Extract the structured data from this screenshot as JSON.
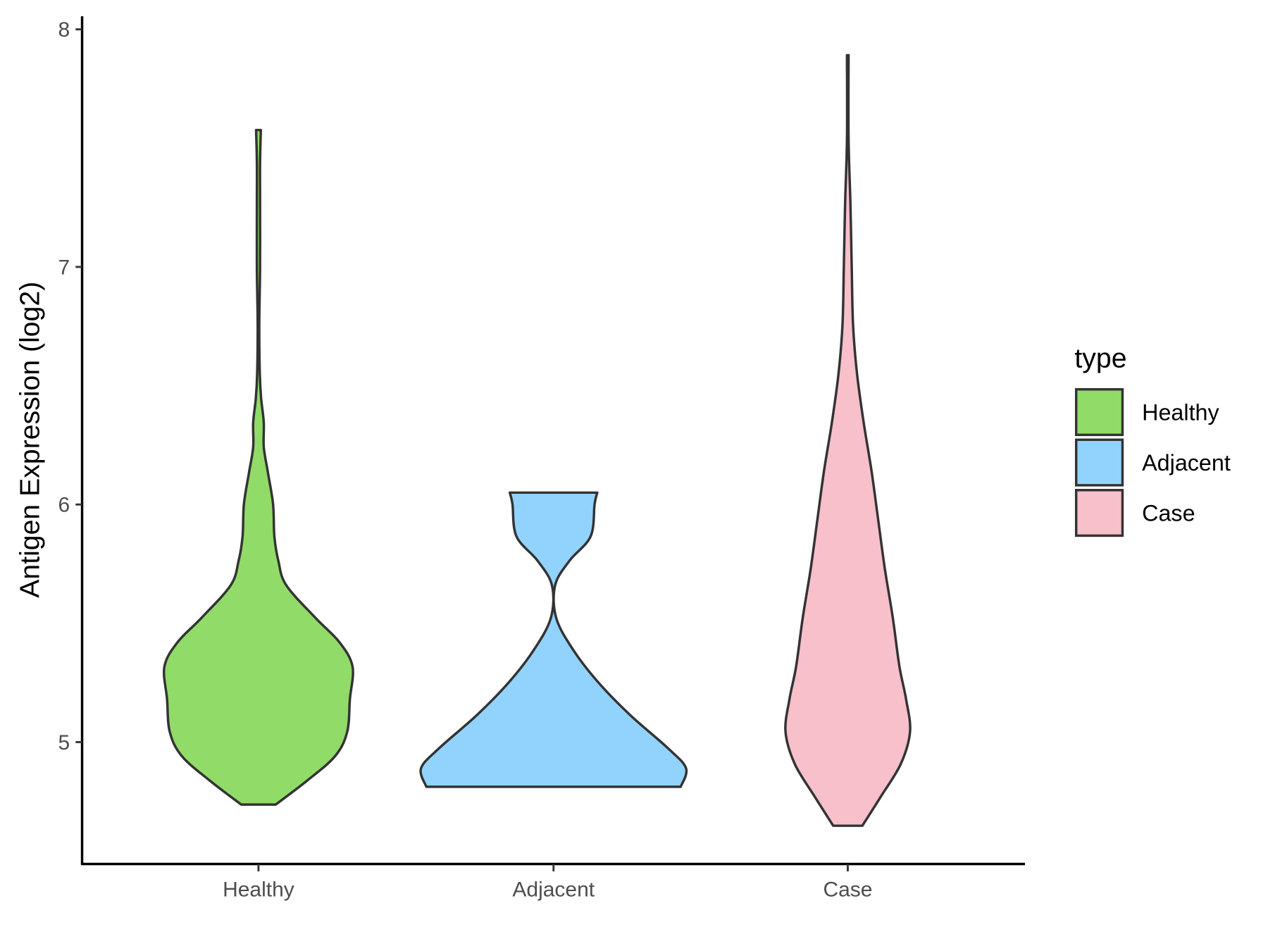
{
  "chart_data": {
    "type": "violin",
    "title": "",
    "xlabel": "",
    "ylabel": "Antigen Expression (log2)",
    "ylim": [
      4.487,
      8.055
    ],
    "yticks": [
      5,
      6,
      7,
      8
    ],
    "categories": [
      "Healthy",
      "Adjacent",
      "Case"
    ],
    "grid": false,
    "legend": {
      "title": "type",
      "position": "right",
      "entries": [
        "Healthy",
        "Adjacent",
        "Case"
      ]
    },
    "colors": {
      "Healthy": "#91DB68",
      "Adjacent": "#92D3FE",
      "Case": "#F7C0CB",
      "outline": "#333333"
    },
    "series": [
      {
        "name": "Healthy",
        "y": [
          4.737,
          4.839,
          4.942,
          5.044,
          5.181,
          5.318,
          5.421,
          5.523,
          5.66,
          5.763,
          5.866,
          6.002,
          6.139,
          6.242,
          6.345,
          6.447,
          6.55,
          6.755,
          6.995,
          7.268,
          7.439,
          7.576
        ],
        "density": [
          0.13,
          0.37,
          0.58,
          0.67,
          0.69,
          0.71,
          0.61,
          0.43,
          0.21,
          0.15,
          0.12,
          0.11,
          0.07,
          0.04,
          0.04,
          0.02,
          0.01,
          0.006,
          0.012,
          0.012,
          0.012,
          0.018
        ]
      },
      {
        "name": "Adjacent",
        "y": [
          4.812,
          4.89,
          4.976,
          5.113,
          5.25,
          5.387,
          5.523,
          5.66,
          5.763,
          5.866,
          6.002,
          6.05
        ],
        "density": [
          0.96,
          1.0,
          0.86,
          0.58,
          0.34,
          0.15,
          0.02,
          0.012,
          0.12,
          0.28,
          0.31,
          0.33
        ]
      },
      {
        "name": "Case",
        "y": [
          4.648,
          4.771,
          4.908,
          5.044,
          5.181,
          5.318,
          5.523,
          5.729,
          5.934,
          6.139,
          6.345,
          6.55,
          6.755,
          6.995,
          7.268,
          7.542,
          7.891
        ],
        "density": [
          0.11,
          0.25,
          0.4,
          0.47,
          0.44,
          0.39,
          0.34,
          0.28,
          0.23,
          0.18,
          0.12,
          0.07,
          0.04,
          0.03,
          0.02,
          0.006,
          0.006
        ]
      }
    ]
  }
}
